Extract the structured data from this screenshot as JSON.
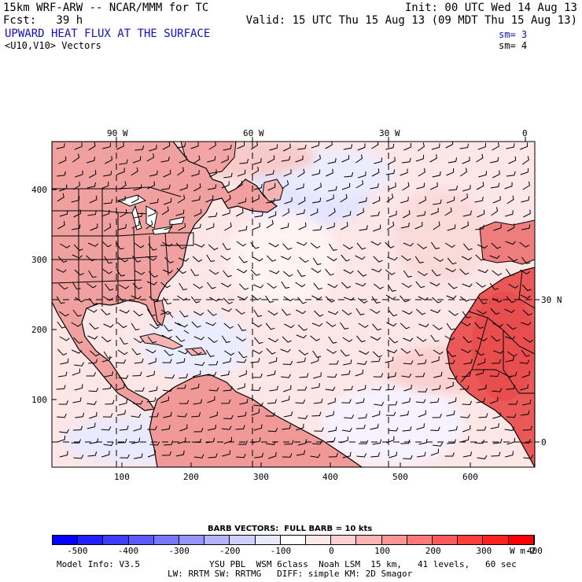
{
  "header": {
    "model_line": "15km WRF-ARW -- NCAR/MMM for TC",
    "init_line": "Init: 00 UTC Wed 14 Aug 13",
    "fcst_line": "Fcst:   39 h",
    "valid_line": "Valid: 15 UTC Thu 15 Aug 13 (09 MDT Thu 15 Aug 13)",
    "field_title": "UPWARD HEAT FLUX AT THE SURFACE",
    "field_sm": "sm= 3",
    "vector_title": "<U10,V10> Vectors",
    "vector_sm": "sm= 4"
  },
  "map": {
    "top_lon_labels": [
      "90 W",
      "60 W",
      "30 W",
      "0"
    ],
    "right_lat_labels": [
      "30 N",
      "0"
    ],
    "left_y_ticks": [
      "400",
      "300",
      "200",
      "100"
    ],
    "bottom_x_ticks": [
      "100",
      "200",
      "300",
      "400",
      "500",
      "600"
    ],
    "colors": {
      "strong_pos": "#ea3c3c",
      "mid_pos": "#f08080",
      "weak_pos": "#fbd4d4",
      "near_zero": "#fff0f0",
      "weak_neg": "#e6e6ff"
    }
  },
  "barb_label": "BARB VECTORS:  FULL BARB = 10 kts",
  "colorbar": {
    "ticks": [
      "-500",
      "-400",
      "-300",
      "-200",
      "-100",
      "0",
      "100",
      "200",
      "300",
      "400"
    ],
    "units": "W m-2",
    "colors": [
      "#0000ff",
      "#2020ff",
      "#3d3dff",
      "#5a5aff",
      "#7878ff",
      "#9595ff",
      "#b3b3ff",
      "#d0d0ff",
      "#e8e8ff",
      "#ffffff",
      "#ffe8e8",
      "#ffd0d0",
      "#ffb3b3",
      "#ff9595",
      "#ff7878",
      "#ff5a5a",
      "#ff3d3d",
      "#ff2020",
      "#ff0000"
    ]
  },
  "footer": {
    "model_info": "Model Info: V3.5",
    "physics_line1": "YSU PBL  WSM 6class  Noah LSM  15 km,   41 levels,   60 sec",
    "physics_line2": "LW: RRTM SW: RRTMG   DIFF: simple KM: 2D Smagor"
  }
}
